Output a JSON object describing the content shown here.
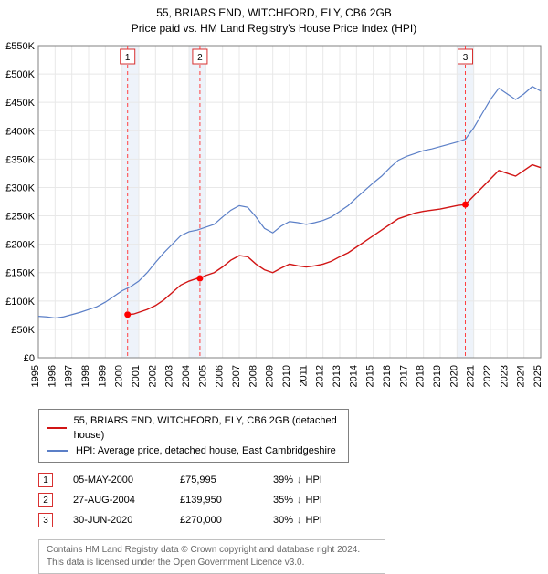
{
  "header": {
    "address": "55, BRIARS END, WITCHFORD, ELY, CB6 2GB",
    "subtitle": "Price paid vs. HM Land Registry's House Price Index (HPI)"
  },
  "chart": {
    "type": "line",
    "background_color": "#ffffff",
    "plot_bg": "#ffffff",
    "grid_color": "#e8e8e8",
    "xlim": [
      1995,
      2025
    ],
    "ylim": [
      0,
      550000
    ],
    "ytick_step": 50000,
    "yticks": [
      0,
      50000,
      100000,
      150000,
      200000,
      250000,
      300000,
      350000,
      400000,
      450000,
      500000,
      550000
    ],
    "ytick_labels": [
      "£0",
      "£50K",
      "£100K",
      "£150K",
      "£200K",
      "£250K",
      "£300K",
      "£350K",
      "£400K",
      "£450K",
      "£500K",
      "£550K"
    ],
    "xticks": [
      1995,
      1996,
      1997,
      1998,
      1999,
      2000,
      2001,
      2002,
      2003,
      2004,
      2005,
      2006,
      2007,
      2008,
      2009,
      2010,
      2011,
      2012,
      2013,
      2014,
      2015,
      2016,
      2017,
      2018,
      2019,
      2020,
      2021,
      2022,
      2023,
      2024,
      2025
    ],
    "label_fontsize": 11,
    "band_years": [
      [
        2000,
        2001
      ],
      [
        2004,
        2005
      ],
      [
        2020,
        2021
      ]
    ],
    "band_color": "#eef3fa",
    "marker_vlines": [
      2000.33,
      2004.65,
      2020.5
    ],
    "vline_color": "#ff4040",
    "vline_dash": "4,3",
    "marker_box_border": "#d83030",
    "markers_top": [
      {
        "label": "1",
        "x": 2000.33
      },
      {
        "label": "2",
        "x": 2004.65
      },
      {
        "label": "3",
        "x": 2020.5
      }
    ],
    "series": {
      "property": {
        "color": "#d11515",
        "width": 1.4,
        "label": "55, BRIARS END, WITCHFORD, ELY, CB6 2GB (detached house)",
        "pts": [
          [
            2000.33,
            75995
          ],
          [
            2000.7,
            77000
          ],
          [
            2001,
            80000
          ],
          [
            2001.5,
            85000
          ],
          [
            2002,
            92000
          ],
          [
            2002.5,
            102000
          ],
          [
            2003,
            115000
          ],
          [
            2003.5,
            128000
          ],
          [
            2004,
            135000
          ],
          [
            2004.5,
            140000
          ],
          [
            2004.65,
            139950
          ],
          [
            2005,
            145000
          ],
          [
            2005.5,
            150000
          ],
          [
            2006,
            160000
          ],
          [
            2006.5,
            172000
          ],
          [
            2007,
            180000
          ],
          [
            2007.5,
            178000
          ],
          [
            2008,
            165000
          ],
          [
            2008.5,
            155000
          ],
          [
            2009,
            150000
          ],
          [
            2009.5,
            158000
          ],
          [
            2010,
            165000
          ],
          [
            2010.5,
            162000
          ],
          [
            2011,
            160000
          ],
          [
            2011.5,
            162000
          ],
          [
            2012,
            165000
          ],
          [
            2012.5,
            170000
          ],
          [
            2013,
            178000
          ],
          [
            2013.5,
            185000
          ],
          [
            2014,
            195000
          ],
          [
            2014.5,
            205000
          ],
          [
            2015,
            215000
          ],
          [
            2015.5,
            225000
          ],
          [
            2016,
            235000
          ],
          [
            2016.5,
            245000
          ],
          [
            2017,
            250000
          ],
          [
            2017.5,
            255000
          ],
          [
            2018,
            258000
          ],
          [
            2018.5,
            260000
          ],
          [
            2019,
            262000
          ],
          [
            2019.5,
            265000
          ],
          [
            2020,
            268000
          ],
          [
            2020.5,
            270000
          ],
          [
            2021,
            285000
          ],
          [
            2021.5,
            300000
          ],
          [
            2022,
            315000
          ],
          [
            2022.5,
            330000
          ],
          [
            2023,
            325000
          ],
          [
            2023.5,
            320000
          ],
          [
            2024,
            330000
          ],
          [
            2024.5,
            340000
          ],
          [
            2025,
            335000
          ]
        ],
        "sale_points": [
          {
            "x": 2000.33,
            "y": 75995
          },
          {
            "x": 2004.65,
            "y": 139950
          },
          {
            "x": 2020.5,
            "y": 270000
          }
        ],
        "dot_color": "#ff0000"
      },
      "hpi": {
        "color": "#5b7fc7",
        "width": 1.2,
        "label": "HPI: Average price, detached house, East Cambridgeshire",
        "pts": [
          [
            1995,
            73000
          ],
          [
            1995.5,
            72000
          ],
          [
            1996,
            70000
          ],
          [
            1996.5,
            72000
          ],
          [
            1997,
            76000
          ],
          [
            1997.5,
            80000
          ],
          [
            1998,
            85000
          ],
          [
            1998.5,
            90000
          ],
          [
            1999,
            98000
          ],
          [
            1999.5,
            108000
          ],
          [
            2000,
            118000
          ],
          [
            2000.5,
            125000
          ],
          [
            2001,
            135000
          ],
          [
            2001.5,
            150000
          ],
          [
            2002,
            168000
          ],
          [
            2002.5,
            185000
          ],
          [
            2003,
            200000
          ],
          [
            2003.5,
            215000
          ],
          [
            2004,
            222000
          ],
          [
            2004.5,
            225000
          ],
          [
            2005,
            230000
          ],
          [
            2005.5,
            235000
          ],
          [
            2006,
            248000
          ],
          [
            2006.5,
            260000
          ],
          [
            2007,
            268000
          ],
          [
            2007.5,
            265000
          ],
          [
            2008,
            248000
          ],
          [
            2008.5,
            228000
          ],
          [
            2009,
            220000
          ],
          [
            2009.5,
            232000
          ],
          [
            2010,
            240000
          ],
          [
            2010.5,
            238000
          ],
          [
            2011,
            235000
          ],
          [
            2011.5,
            238000
          ],
          [
            2012,
            242000
          ],
          [
            2012.5,
            248000
          ],
          [
            2013,
            258000
          ],
          [
            2013.5,
            268000
          ],
          [
            2014,
            282000
          ],
          [
            2014.5,
            295000
          ],
          [
            2015,
            308000
          ],
          [
            2015.5,
            320000
          ],
          [
            2016,
            335000
          ],
          [
            2016.5,
            348000
          ],
          [
            2017,
            355000
          ],
          [
            2017.5,
            360000
          ],
          [
            2018,
            365000
          ],
          [
            2018.5,
            368000
          ],
          [
            2019,
            372000
          ],
          [
            2019.5,
            376000
          ],
          [
            2020,
            380000
          ],
          [
            2020.5,
            385000
          ],
          [
            2021,
            405000
          ],
          [
            2021.5,
            430000
          ],
          [
            2022,
            455000
          ],
          [
            2022.5,
            475000
          ],
          [
            2023,
            465000
          ],
          [
            2023.5,
            455000
          ],
          [
            2024,
            465000
          ],
          [
            2024.5,
            478000
          ],
          [
            2025,
            470000
          ]
        ]
      }
    }
  },
  "legend": {
    "border_color": "#808080"
  },
  "transactions": [
    {
      "idx": "1",
      "date": "05-MAY-2000",
      "price": "£75,995",
      "pct": "39%",
      "dir": "↓",
      "suffix": "HPI"
    },
    {
      "idx": "2",
      "date": "27-AUG-2004",
      "price": "£139,950",
      "pct": "35%",
      "dir": "↓",
      "suffix": "HPI"
    },
    {
      "idx": "3",
      "date": "30-JUN-2020",
      "price": "£270,000",
      "pct": "30%",
      "dir": "↓",
      "suffix": "HPI"
    }
  ],
  "attribution": {
    "line1": "Contains HM Land Registry data © Crown copyright and database right 2024.",
    "line2": "This data is licensed under the Open Government Licence v3.0."
  },
  "colors": {
    "text": "#000000",
    "muted": "#666666",
    "arrow": "#4a4a4a"
  }
}
